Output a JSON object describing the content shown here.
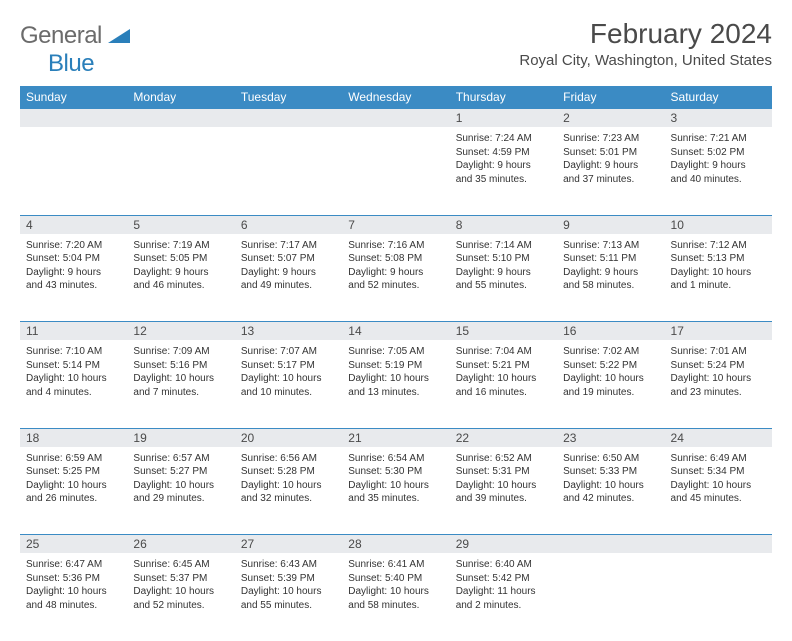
{
  "logo": {
    "text_grey": "General",
    "text_blue": "Blue"
  },
  "title": "February 2024",
  "location": "Royal City, Washington, United States",
  "colors": {
    "header_bg": "#3b8bc4",
    "header_text": "#ffffff",
    "daynum_bg": "#e8eaed",
    "border": "#3b8bc4",
    "text": "#333333",
    "logo_grey": "#6b6b6b",
    "logo_blue": "#2a7fba"
  },
  "day_headers": [
    "Sunday",
    "Monday",
    "Tuesday",
    "Wednesday",
    "Thursday",
    "Friday",
    "Saturday"
  ],
  "weeks": [
    [
      null,
      null,
      null,
      null,
      {
        "n": "1",
        "sr": "7:24 AM",
        "ss": "4:59 PM",
        "dl1": "Daylight: 9 hours",
        "dl2": "and 35 minutes."
      },
      {
        "n": "2",
        "sr": "7:23 AM",
        "ss": "5:01 PM",
        "dl1": "Daylight: 9 hours",
        "dl2": "and 37 minutes."
      },
      {
        "n": "3",
        "sr": "7:21 AM",
        "ss": "5:02 PM",
        "dl1": "Daylight: 9 hours",
        "dl2": "and 40 minutes."
      }
    ],
    [
      {
        "n": "4",
        "sr": "7:20 AM",
        "ss": "5:04 PM",
        "dl1": "Daylight: 9 hours",
        "dl2": "and 43 minutes."
      },
      {
        "n": "5",
        "sr": "7:19 AM",
        "ss": "5:05 PM",
        "dl1": "Daylight: 9 hours",
        "dl2": "and 46 minutes."
      },
      {
        "n": "6",
        "sr": "7:17 AM",
        "ss": "5:07 PM",
        "dl1": "Daylight: 9 hours",
        "dl2": "and 49 minutes."
      },
      {
        "n": "7",
        "sr": "7:16 AM",
        "ss": "5:08 PM",
        "dl1": "Daylight: 9 hours",
        "dl2": "and 52 minutes."
      },
      {
        "n": "8",
        "sr": "7:14 AM",
        "ss": "5:10 PM",
        "dl1": "Daylight: 9 hours",
        "dl2": "and 55 minutes."
      },
      {
        "n": "9",
        "sr": "7:13 AM",
        "ss": "5:11 PM",
        "dl1": "Daylight: 9 hours",
        "dl2": "and 58 minutes."
      },
      {
        "n": "10",
        "sr": "7:12 AM",
        "ss": "5:13 PM",
        "dl1": "Daylight: 10 hours",
        "dl2": "and 1 minute."
      }
    ],
    [
      {
        "n": "11",
        "sr": "7:10 AM",
        "ss": "5:14 PM",
        "dl1": "Daylight: 10 hours",
        "dl2": "and 4 minutes."
      },
      {
        "n": "12",
        "sr": "7:09 AM",
        "ss": "5:16 PM",
        "dl1": "Daylight: 10 hours",
        "dl2": "and 7 minutes."
      },
      {
        "n": "13",
        "sr": "7:07 AM",
        "ss": "5:17 PM",
        "dl1": "Daylight: 10 hours",
        "dl2": "and 10 minutes."
      },
      {
        "n": "14",
        "sr": "7:05 AM",
        "ss": "5:19 PM",
        "dl1": "Daylight: 10 hours",
        "dl2": "and 13 minutes."
      },
      {
        "n": "15",
        "sr": "7:04 AM",
        "ss": "5:21 PM",
        "dl1": "Daylight: 10 hours",
        "dl2": "and 16 minutes."
      },
      {
        "n": "16",
        "sr": "7:02 AM",
        "ss": "5:22 PM",
        "dl1": "Daylight: 10 hours",
        "dl2": "and 19 minutes."
      },
      {
        "n": "17",
        "sr": "7:01 AM",
        "ss": "5:24 PM",
        "dl1": "Daylight: 10 hours",
        "dl2": "and 23 minutes."
      }
    ],
    [
      {
        "n": "18",
        "sr": "6:59 AM",
        "ss": "5:25 PM",
        "dl1": "Daylight: 10 hours",
        "dl2": "and 26 minutes."
      },
      {
        "n": "19",
        "sr": "6:57 AM",
        "ss": "5:27 PM",
        "dl1": "Daylight: 10 hours",
        "dl2": "and 29 minutes."
      },
      {
        "n": "20",
        "sr": "6:56 AM",
        "ss": "5:28 PM",
        "dl1": "Daylight: 10 hours",
        "dl2": "and 32 minutes."
      },
      {
        "n": "21",
        "sr": "6:54 AM",
        "ss": "5:30 PM",
        "dl1": "Daylight: 10 hours",
        "dl2": "and 35 minutes."
      },
      {
        "n": "22",
        "sr": "6:52 AM",
        "ss": "5:31 PM",
        "dl1": "Daylight: 10 hours",
        "dl2": "and 39 minutes."
      },
      {
        "n": "23",
        "sr": "6:50 AM",
        "ss": "5:33 PM",
        "dl1": "Daylight: 10 hours",
        "dl2": "and 42 minutes."
      },
      {
        "n": "24",
        "sr": "6:49 AM",
        "ss": "5:34 PM",
        "dl1": "Daylight: 10 hours",
        "dl2": "and 45 minutes."
      }
    ],
    [
      {
        "n": "25",
        "sr": "6:47 AM",
        "ss": "5:36 PM",
        "dl1": "Daylight: 10 hours",
        "dl2": "and 48 minutes."
      },
      {
        "n": "26",
        "sr": "6:45 AM",
        "ss": "5:37 PM",
        "dl1": "Daylight: 10 hours",
        "dl2": "and 52 minutes."
      },
      {
        "n": "27",
        "sr": "6:43 AM",
        "ss": "5:39 PM",
        "dl1": "Daylight: 10 hours",
        "dl2": "and 55 minutes."
      },
      {
        "n": "28",
        "sr": "6:41 AM",
        "ss": "5:40 PM",
        "dl1": "Daylight: 10 hours",
        "dl2": "and 58 minutes."
      },
      {
        "n": "29",
        "sr": "6:40 AM",
        "ss": "5:42 PM",
        "dl1": "Daylight: 11 hours",
        "dl2": "and 2 minutes."
      },
      null,
      null
    ]
  ]
}
